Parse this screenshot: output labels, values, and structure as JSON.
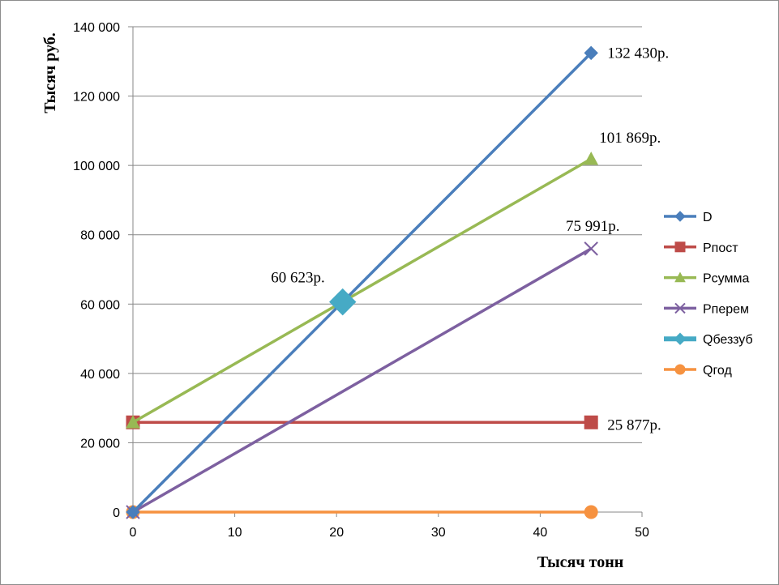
{
  "chart_data": {
    "type": "line",
    "title": "",
    "xlabel": "Тысяч тонн",
    "ylabel": "Тысяч руб.",
    "xlim": [
      0,
      50
    ],
    "ylim": [
      0,
      140000
    ],
    "x_ticks": [
      "0",
      "10",
      "20",
      "30",
      "40",
      "50"
    ],
    "y_ticks": [
      "0",
      "20 000",
      "40 000",
      "60 000",
      "80 000",
      "100 000",
      "120 000",
      "140 000"
    ],
    "grid": "horizontal major gridlines",
    "legend_position": "right",
    "series": [
      {
        "name": "D",
        "color": "#4a7ebb",
        "marker": "diamond",
        "x": [
          0,
          45
        ],
        "y": [
          0,
          132430
        ]
      },
      {
        "name": "Рпост",
        "color": "#be4b48",
        "marker": "square",
        "x": [
          0,
          45
        ],
        "y": [
          25877,
          25877
        ]
      },
      {
        "name": "Рсумма",
        "color": "#98b954",
        "marker": "triangle",
        "x": [
          0,
          45
        ],
        "y": [
          25877,
          101869
        ]
      },
      {
        "name": "Рперем",
        "color": "#7d60a0",
        "marker": "x",
        "x": [
          0,
          45
        ],
        "y": [
          0,
          75991
        ]
      },
      {
        "name": "Qбеззуб",
        "color": "#46aac5",
        "marker": "diamond-large",
        "x": [
          20.6
        ],
        "y": [
          60623
        ]
      },
      {
        "name": "Qгод",
        "color": "#f69240",
        "marker": "circle",
        "x": [
          0,
          45
        ],
        "y": [
          0,
          0
        ]
      }
    ],
    "annotations": [
      {
        "text": "132 430р.",
        "x": 45,
        "y": 132430
      },
      {
        "text": "101 869р.",
        "x": 45,
        "y": 101869
      },
      {
        "text": "75 991р.",
        "x": 45,
        "y": 75991
      },
      {
        "text": "60 623р.",
        "x": 20.6,
        "y": 60623
      },
      {
        "text": "25 877р.",
        "x": 45,
        "y": 25877
      }
    ]
  }
}
